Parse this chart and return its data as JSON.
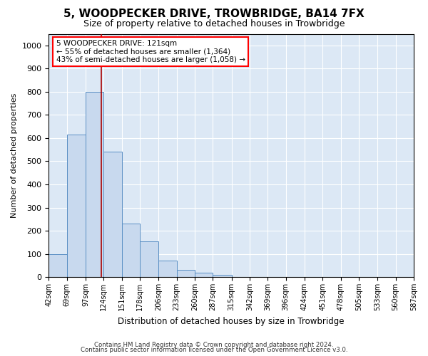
{
  "title": "5, WOODPECKER DRIVE, TROWBRIDGE, BA14 7FX",
  "subtitle": "Size of property relative to detached houses in Trowbridge",
  "xlabel": "Distribution of detached houses by size in Trowbridge",
  "ylabel": "Number of detached properties",
  "footer_line1": "Contains HM Land Registry data © Crown copyright and database right 2024.",
  "footer_line2": "Contains public sector information licensed under the Open Government Licence v3.0.",
  "annotation_title": "5 WOODPECKER DRIVE: 121sqm",
  "annotation_line2": "← 55% of detached houses are smaller (1,364)",
  "annotation_line3": "43% of semi-detached houses are larger (1,058) →",
  "property_size": 121,
  "bar_edges": [
    42,
    69,
    97,
    124,
    151,
    178,
    206,
    233,
    260,
    287,
    315,
    342,
    369,
    396,
    424,
    451,
    478,
    505,
    533,
    560,
    587
  ],
  "bar_heights": [
    100,
    615,
    800,
    540,
    230,
    155,
    70,
    30,
    20,
    10,
    0,
    0,
    0,
    0,
    0,
    0,
    0,
    0,
    0,
    0
  ],
  "bar_color": "#c8d9ee",
  "bar_edge_color": "#5a8fc4",
  "vline_color": "#aa0000",
  "background_color": "#dce8f5",
  "ylim": [
    0,
    1050
  ],
  "yticks": [
    0,
    100,
    200,
    300,
    400,
    500,
    600,
    700,
    800,
    900,
    1000
  ],
  "title_fontsize": 11,
  "subtitle_fontsize": 9
}
